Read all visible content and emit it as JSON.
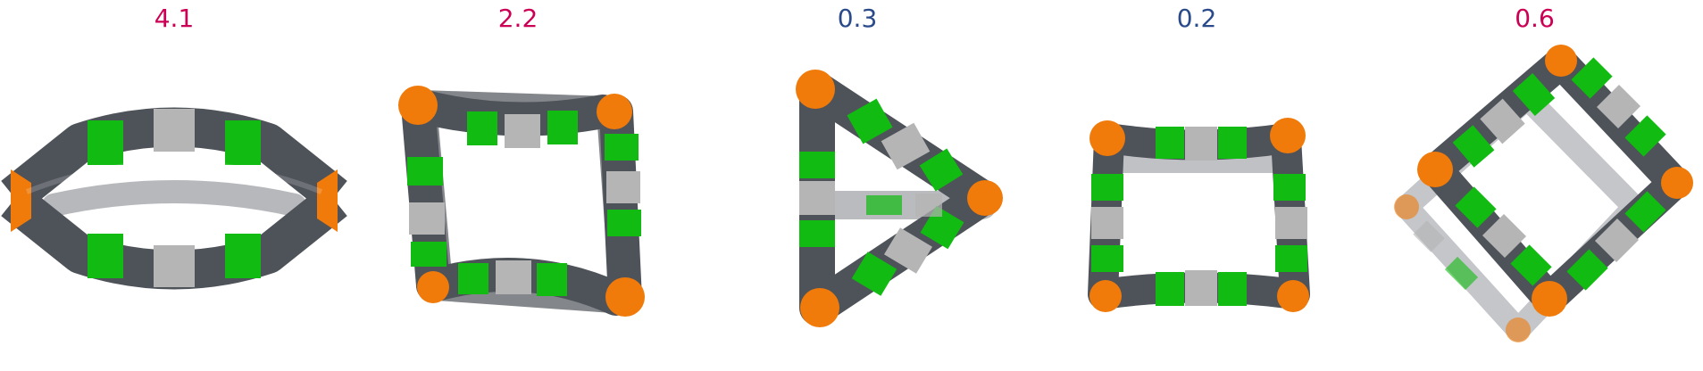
{
  "labels": [
    "4.1",
    "2.2",
    "0.3",
    "0.2",
    "0.6"
  ],
  "label_colors": [
    "#cc0055",
    "#cc0055",
    "#2a4a8a",
    "#2a4a8a",
    "#cc0055"
  ],
  "palette": {
    "carbon": "#4e5259",
    "carbon_hi": "#8a8e95",
    "green": "#11bb11",
    "green_hi": "#66e066",
    "white": "#b5b5b5",
    "white_hi": "#eeeeee",
    "orange": "#f07a0a",
    "orange_hi": "#ffb050"
  }
}
